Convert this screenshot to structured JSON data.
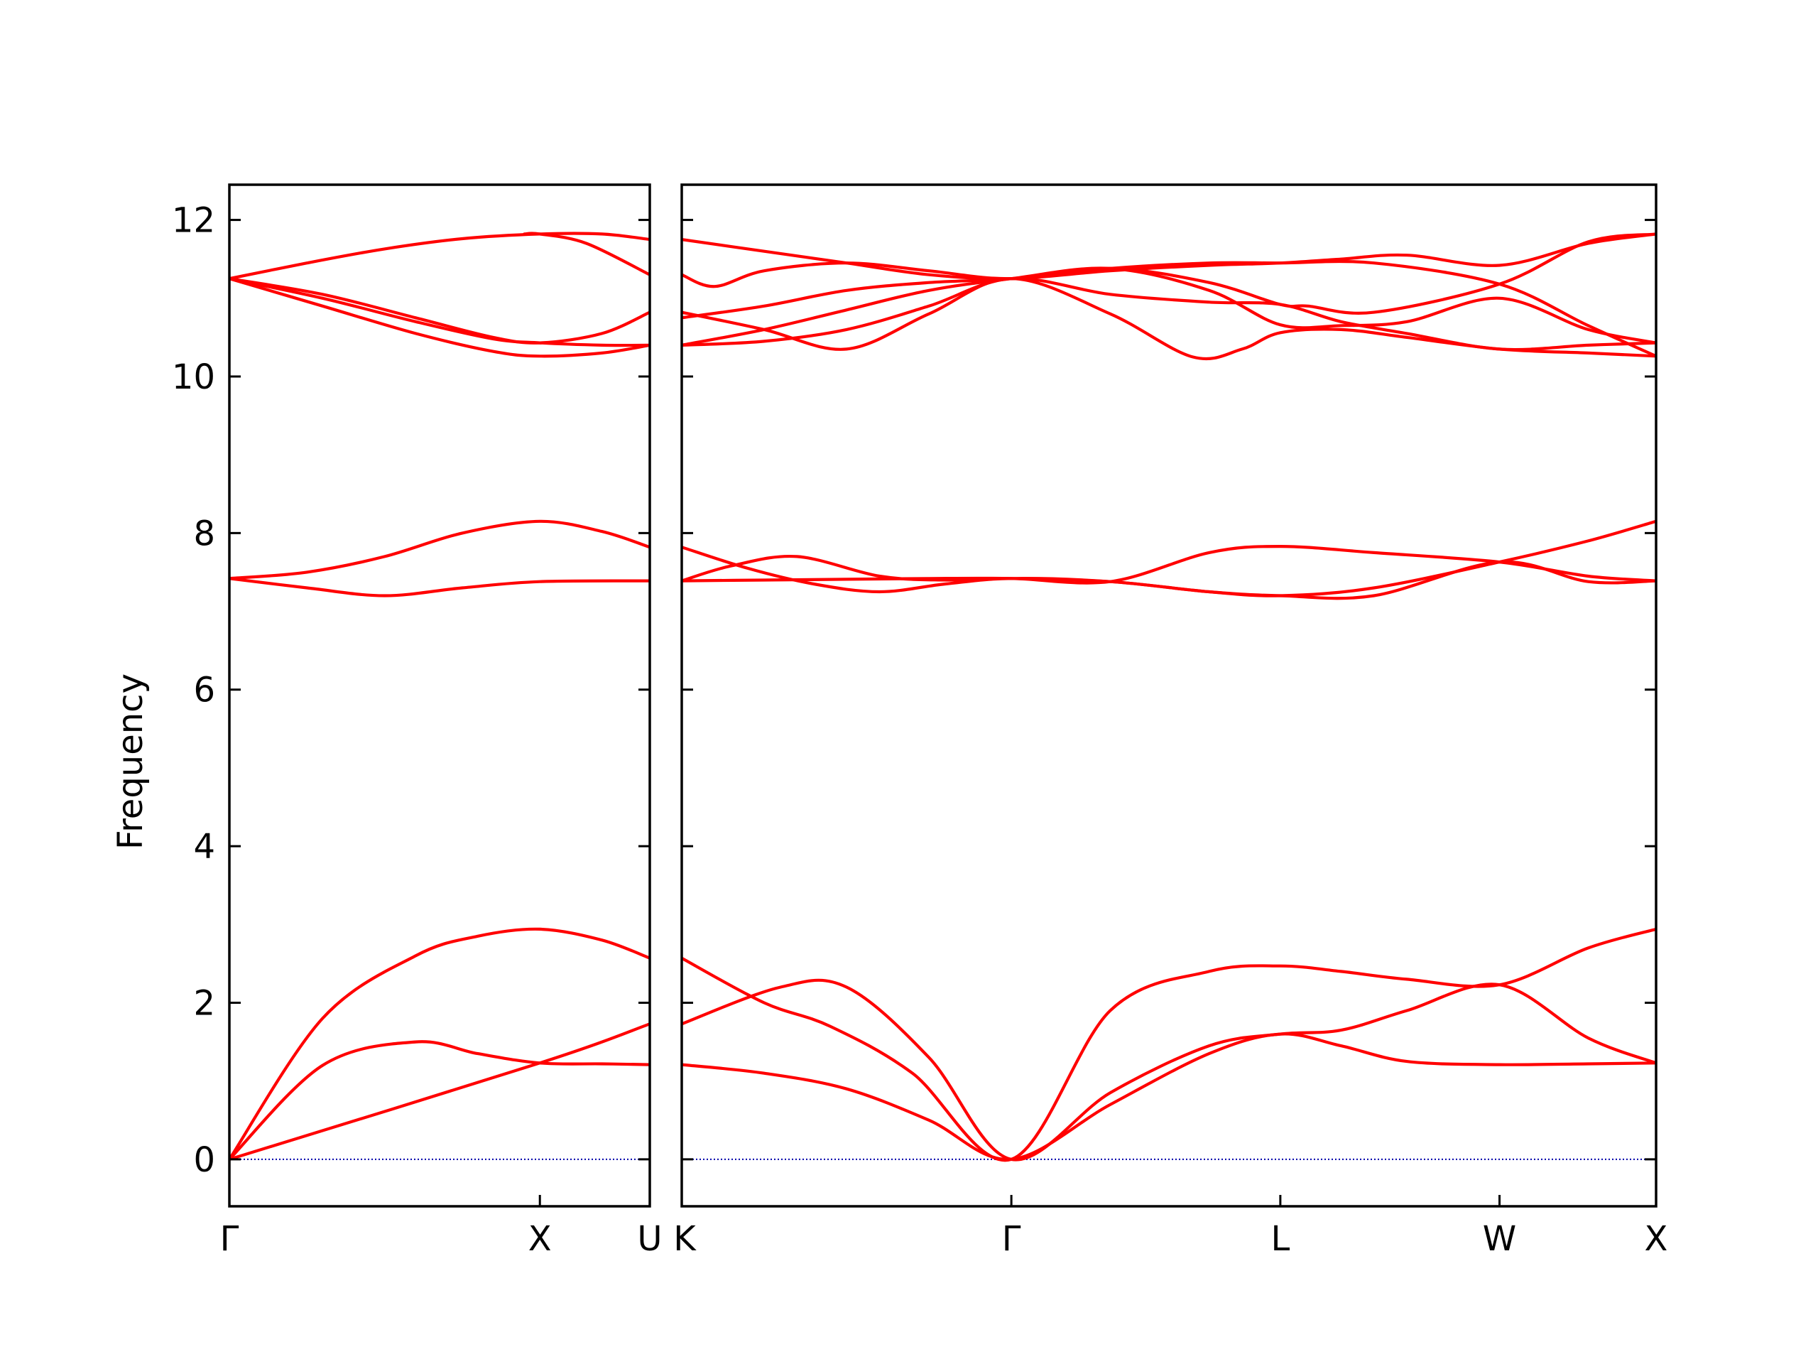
{
  "chart_data": {
    "type": "line",
    "ylabel": "Frequency",
    "ylim": [
      -0.6,
      12.45
    ],
    "yticks": [
      "0",
      "2",
      "4",
      "6",
      "8",
      "10",
      "12"
    ],
    "ytick_values": [
      0,
      2,
      4,
      6,
      8,
      10,
      12
    ],
    "zero_line_color": "#0000aa",
    "band_color": "#ff0000",
    "panels": [
      {
        "path": [
          "Γ",
          "X",
          "U"
        ],
        "xlim": [
          0,
          1.354
        ],
        "ticks": [
          {
            "label": "Γ",
            "x": 0
          },
          {
            "label": "X",
            "x": 1.0
          },
          {
            "label": "U",
            "x": 1.354
          }
        ],
        "bands": [
          {
            "x": [
              0,
              0.3,
              0.6,
              0.8,
              1.0,
              1.2,
              1.354
            ],
            "y": [
              0,
              1.2,
              1.5,
              1.35,
              1.23,
              1.22,
              1.21
            ]
          },
          {
            "x": [
              0,
              1.0,
              1.354
            ],
            "y": [
              0,
              1.23,
              1.73
            ]
          },
          {
            "x": [
              0,
              0.3,
              0.6,
              0.8,
              1.0,
              1.2,
              1.354
            ],
            "y": [
              0,
              1.8,
              2.6,
              2.85,
              2.94,
              2.8,
              2.57
            ]
          },
          {
            "x": [
              0,
              0.25,
              0.5,
              0.75,
              1.0,
              1.354
            ],
            "y": [
              7.42,
              7.3,
              7.2,
              7.3,
              7.38,
              7.39
            ]
          },
          {
            "x": [
              0,
              0.25,
              0.5,
              0.75,
              1.0,
              1.2,
              1.354
            ],
            "y": [
              7.42,
              7.5,
              7.7,
              8.0,
              8.15,
              8.02,
              7.82
            ]
          },
          {
            "x": [
              0,
              0.3,
              0.6,
              0.85,
              1.0,
              1.2,
              1.354
            ],
            "y": [
              11.25,
              10.9,
              10.55,
              10.32,
              10.26,
              10.3,
              10.4
            ]
          },
          {
            "x": [
              0,
              0.3,
              0.6,
              0.85,
              1.0,
              1.2,
              1.354
            ],
            "y": [
              11.25,
              11.0,
              10.7,
              10.48,
              10.43,
              10.4,
              10.4
            ]
          },
          {
            "x": [
              0,
              0.3,
              0.6,
              0.85,
              1.0,
              1.2,
              1.354
            ],
            "y": [
              11.25,
              11.05,
              10.75,
              10.5,
              10.43,
              10.55,
              10.82
            ]
          },
          {
            "x": [
              0,
              0.25,
              0.5,
              0.75,
              1.0,
              1.2,
              1.354
            ],
            "y": [
              11.25,
              11.45,
              11.63,
              11.76,
              11.82,
              11.82,
              11.75
            ]
          },
          {
            "x": [
              0.95,
              1.0,
              1.15,
              1.354
            ],
            "y": [
              11.82,
              11.82,
              11.7,
              11.3
            ]
          }
        ]
      },
      {
        "path": [
          "K",
          "Γ",
          "L",
          "W",
          "X"
        ],
        "xlim": [
          0,
          2.956
        ],
        "ticks": [
          {
            "label": "K",
            "x": 0
          },
          {
            "label": "Γ",
            "x": 1.0
          },
          {
            "label": "L",
            "x": 1.816
          },
          {
            "label": "W",
            "x": 2.481
          },
          {
            "label": "X",
            "x": 2.956
          }
        ],
        "bands": [
          {
            "x": [
              0,
              0.25,
              0.5,
              0.75,
              1.0,
              1.3,
              1.6,
              1.816,
              2.0,
              2.2,
              2.481,
              2.75,
              2.956
            ],
            "y": [
              1.21,
              1.1,
              0.9,
              0.5,
              0,
              0.7,
              1.35,
              1.6,
              1.45,
              1.25,
              1.21,
              1.22,
              1.23
            ]
          },
          {
            "x": [
              0,
              0.25,
              0.45,
              0.7,
              1.0,
              1.3,
              1.6,
              1.816,
              2.0,
              2.2,
              2.481,
              2.75,
              2.956
            ],
            "y": [
              2.57,
              2.0,
              1.7,
              1.1,
              0,
              1.9,
              2.4,
              2.47,
              2.4,
              2.3,
              2.23,
              2.7,
              2.94
            ]
          },
          {
            "x": [
              0,
              0.3,
              0.5,
              0.75,
              1.0,
              1.3,
              1.6,
              1.816,
              2.0,
              2.2,
              2.481,
              2.75,
              2.956
            ],
            "y": [
              1.73,
              2.2,
              2.2,
              1.3,
              0,
              0.85,
              1.45,
              1.6,
              1.65,
              1.9,
              2.23,
              1.55,
              1.23
            ]
          },
          {
            "x": [
              0,
              0.2,
              0.4,
              0.6,
              0.8,
              1.0,
              1.3,
              1.6,
              1.816,
              2.1,
              2.481,
              2.75,
              2.956
            ],
            "y": [
              7.82,
              7.55,
              7.35,
              7.25,
              7.35,
              7.42,
              7.38,
              7.25,
              7.2,
              7.3,
              7.63,
              7.9,
              8.15
            ]
          },
          {
            "x": [
              0,
              0.15,
              0.35,
              0.6,
              0.8,
              1.0,
              1.3,
              1.6,
              1.816,
              2.1,
              2.481,
              2.75,
              2.956
            ],
            "y": [
              7.39,
              7.58,
              7.7,
              7.45,
              7.4,
              7.42,
              7.38,
              7.75,
              7.83,
              7.75,
              7.63,
              7.45,
              7.39
            ]
          },
          {
            "x": [
              0,
              0.25,
              0.5,
              0.75,
              1.0,
              1.3,
              1.6,
              1.816,
              2.1,
              2.481,
              2.75,
              2.956
            ],
            "y": [
              7.39,
              7.4,
              7.41,
              7.42,
              7.42,
              7.38,
              7.25,
              7.2,
              7.2,
              7.63,
              7.38,
              7.39
            ]
          },
          {
            "x": [
              0,
              0.25,
              0.5,
              0.75,
              1.0,
              1.3,
              1.55,
              1.7,
              1.816,
              2.0,
              2.2,
              2.481,
              2.75,
              2.956
            ],
            "y": [
              10.82,
              10.6,
              10.35,
              10.8,
              11.25,
              10.8,
              10.25,
              10.35,
              10.56,
              10.6,
              10.5,
              10.35,
              10.3,
              10.26
            ]
          },
          {
            "x": [
              0,
              0.25,
              0.5,
              0.75,
              1.0,
              1.3,
              1.6,
              1.816,
              2.0,
              2.2,
              2.481,
              2.75,
              2.956
            ],
            "y": [
              10.4,
              10.45,
              10.6,
              10.9,
              11.25,
              11.05,
              10.95,
              10.92,
              10.7,
              10.55,
              10.35,
              10.4,
              10.43
            ]
          },
          {
            "x": [
              0,
              0.25,
              0.5,
              0.75,
              1.0,
              1.3,
              1.6,
              1.816,
              2.0,
              2.2,
              2.481,
              2.75,
              2.956
            ],
            "y": [
              10.4,
              10.6,
              10.85,
              11.1,
              11.25,
              11.38,
              11.1,
              10.66,
              10.65,
              10.7,
              11.0,
              10.6,
              10.43
            ]
          },
          {
            "x": [
              0,
              0.1,
              0.25,
              0.5,
              0.75,
              1.0,
              1.3,
              1.6,
              1.816,
              2.1,
              2.481,
              2.75,
              2.956
            ],
            "y": [
              11.3,
              11.15,
              11.35,
              11.45,
              11.35,
              11.25,
              11.38,
              11.45,
              11.45,
              11.45,
              11.18,
              10.65,
              10.26
            ]
          },
          {
            "x": [
              0,
              0.25,
              0.5,
              0.75,
              1.0,
              1.3,
              1.6,
              1.816,
              2.0,
              2.2,
              2.481,
              2.75,
              2.956
            ],
            "y": [
              11.75,
              11.6,
              11.45,
              11.3,
              11.25,
              11.35,
              11.42,
              11.45,
              11.5,
              11.55,
              11.42,
              11.7,
              11.82
            ]
          },
          {
            "x": [
              0,
              0.25,
              0.5,
              0.75,
              1.0,
              1.3,
              1.6,
              1.816,
              1.9,
              2.1,
              2.481,
              2.75,
              2.956
            ],
            "y": [
              10.75,
              10.9,
              11.1,
              11.2,
              11.25,
              11.38,
              11.2,
              10.92,
              10.9,
              10.82,
              11.18,
              11.72,
              11.82
            ]
          }
        ]
      }
    ]
  }
}
